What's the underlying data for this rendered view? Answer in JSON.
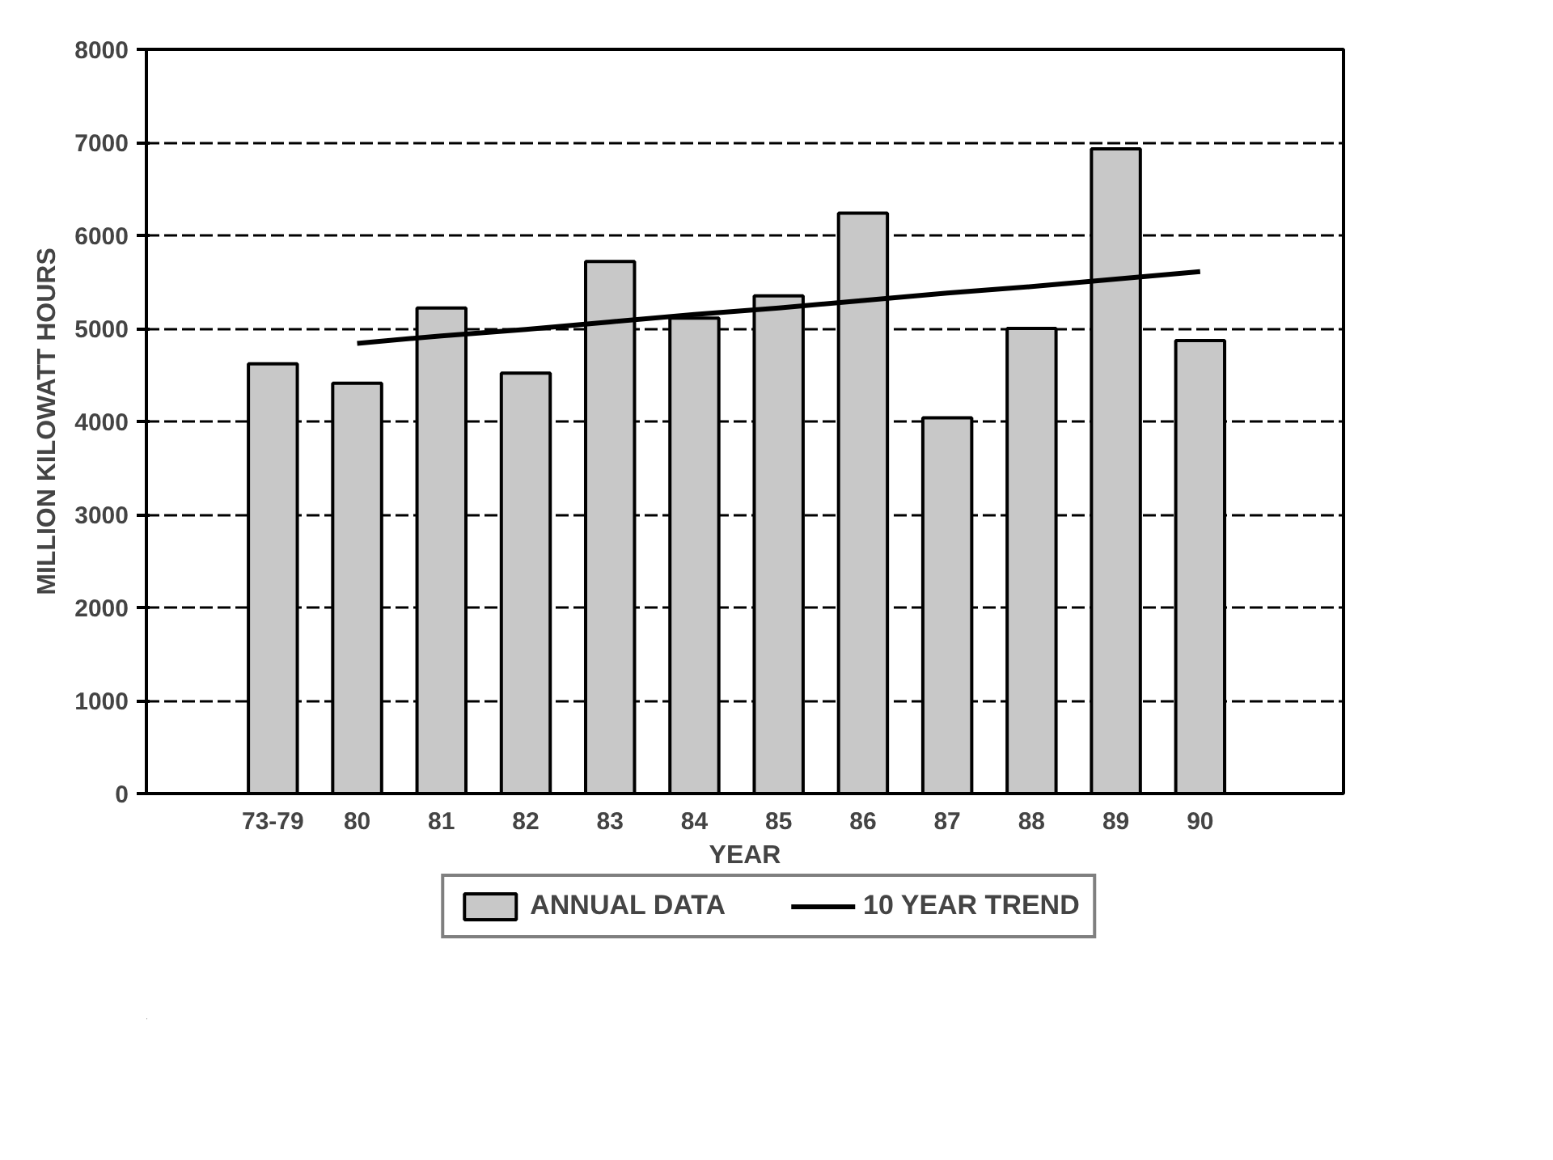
{
  "chart_data": {
    "type": "bar",
    "xlabel": "YEAR",
    "ylabel": "MILLION KILOWATT HOURS",
    "categories": [
      "73-79",
      "80",
      "81",
      "82",
      "83",
      "84",
      "85",
      "86",
      "87",
      "88",
      "89",
      "90"
    ],
    "series": [
      {
        "name": "ANNUAL DATA",
        "type": "bar",
        "color": "#c8c8c8",
        "values": [
          4620,
          4410,
          5220,
          4520,
          5720,
          5110,
          5350,
          6240,
          4040,
          5000,
          6930,
          4870
        ]
      },
      {
        "name": "10 YEAR TREND",
        "type": "line",
        "color": "#000000",
        "values": [
          null,
          4840,
          4920,
          4990,
          5070,
          5150,
          5220,
          5300,
          5380,
          5450,
          5530,
          5610
        ]
      }
    ],
    "ylim": [
      0,
      8000
    ],
    "yticks": [
      0,
      1000,
      2000,
      3000,
      4000,
      5000,
      6000,
      7000,
      8000
    ],
    "grid": "y",
    "legend": "bottom",
    "line_style": "solid"
  }
}
